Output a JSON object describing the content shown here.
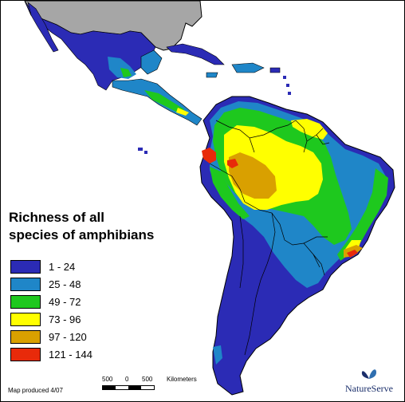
{
  "map": {
    "title_line1": "Richness of all",
    "title_line2": "species of amphibians",
    "legend": [
      {
        "label": "1 - 24",
        "color": "#2b2bb5"
      },
      {
        "label": "25 - 48",
        "color": "#1f86c8"
      },
      {
        "label": "49 - 72",
        "color": "#1ec81e"
      },
      {
        "label": "73 - 96",
        "color": "#ffff00"
      },
      {
        "label": "97 - 120",
        "color": "#d9a000"
      },
      {
        "label": "121 - 144",
        "color": "#e82a0a"
      }
    ],
    "credit": "Map produced 4/07",
    "scale": {
      "left": "500",
      "zero": "0",
      "right": "500",
      "unit": "Kilometers"
    },
    "logo": "NatureServe"
  }
}
